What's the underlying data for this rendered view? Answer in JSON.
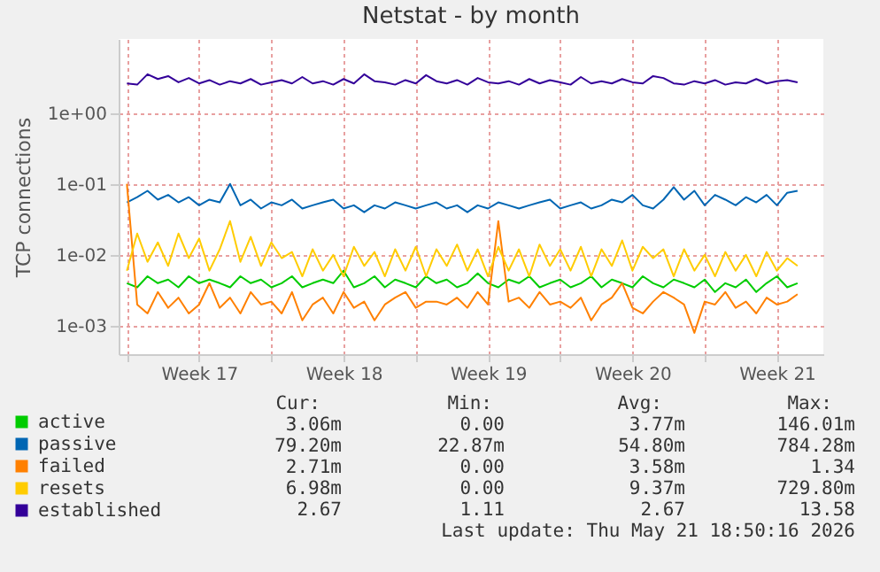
{
  "chart_data": {
    "type": "line",
    "title": "Netstat - by month",
    "ylabel": "TCP connections",
    "log": "y",
    "grid": true,
    "legend": "bottom left",
    "marker": "none",
    "line_style": "solid",
    "xlim": [
      "2026-04-19T14:24",
      "2026-05-23T18:00"
    ],
    "xticks": [
      {
        "value": "2026-04-20T00:00",
        "label": null
      },
      {
        "value": "2026-04-23T12:00",
        "label": "Week 17"
      },
      {
        "value": "2026-04-27T00:00",
        "label": null
      },
      {
        "value": "2026-04-30T12:00",
        "label": "Week 18"
      },
      {
        "value": "2026-05-04T00:00",
        "label": null
      },
      {
        "value": "2026-05-07T12:00",
        "label": "Week 19"
      },
      {
        "value": "2026-05-11T00:00",
        "label": null
      },
      {
        "value": "2026-05-14T12:00",
        "label": "Week 20"
      },
      {
        "value": "2026-05-18T00:00",
        "label": null
      },
      {
        "value": "2026-05-21T12:00",
        "label": "Week 21"
      }
    ],
    "ylim": [
      0.0004,
      11
    ],
    "yticks": [
      {
        "value": 0.001,
        "label": "1e-03"
      },
      {
        "value": 0.01,
        "label": "1e-02"
      },
      {
        "value": 0.1,
        "label": "1e-01"
      },
      {
        "value": 1,
        "label": "1e+00"
      }
    ],
    "x": [
      "2026-04-20T00:00",
      "2026-04-20T12:00",
      "2026-04-21T00:00",
      "2026-04-21T12:00",
      "2026-04-22T00:00",
      "2026-04-22T12:00",
      "2026-04-23T00:00",
      "2026-04-23T12:00",
      "2026-04-24T00:00",
      "2026-04-24T12:00",
      "2026-04-25T00:00",
      "2026-04-25T12:00",
      "2026-04-26T00:00",
      "2026-04-26T12:00",
      "2026-04-27T00:00",
      "2026-04-27T12:00",
      "2026-04-28T00:00",
      "2026-04-28T12:00",
      "2026-04-29T00:00",
      "2026-04-29T12:00",
      "2026-04-30T00:00",
      "2026-04-30T12:00",
      "2026-05-01T00:00",
      "2026-05-01T12:00",
      "2026-05-02T00:00",
      "2026-05-02T12:00",
      "2026-05-03T00:00",
      "2026-05-03T12:00",
      "2026-05-04T00:00",
      "2026-05-04T12:00",
      "2026-05-05T00:00",
      "2026-05-05T12:00",
      "2026-05-06T00:00",
      "2026-05-06T12:00",
      "2026-05-07T00:00",
      "2026-05-07T12:00",
      "2026-05-08T00:00",
      "2026-05-08T12:00",
      "2026-05-09T00:00",
      "2026-05-09T12:00",
      "2026-05-10T00:00",
      "2026-05-10T12:00",
      "2026-05-11T00:00",
      "2026-05-11T12:00",
      "2026-05-12T00:00",
      "2026-05-12T12:00",
      "2026-05-13T00:00",
      "2026-05-13T12:00",
      "2026-05-14T00:00",
      "2026-05-14T12:00",
      "2026-05-15T00:00",
      "2026-05-15T12:00",
      "2026-05-16T00:00",
      "2026-05-16T12:00",
      "2026-05-17T00:00",
      "2026-05-17T12:00",
      "2026-05-18T00:00",
      "2026-05-18T12:00",
      "2026-05-19T00:00",
      "2026-05-19T12:00",
      "2026-05-20T00:00",
      "2026-05-20T12:00",
      "2026-05-21T00:00",
      "2026-05-21T12:00",
      "2026-05-22T00:00",
      "2026-05-22T12:00"
    ],
    "series": [
      {
        "name": "active",
        "color": "#00cc00",
        "values": [
          0.004,
          0.0035,
          0.005,
          0.004,
          0.0045,
          0.0035,
          0.005,
          0.004,
          0.0045,
          0.004,
          0.0035,
          0.005,
          0.004,
          0.0045,
          0.0035,
          0.004,
          0.005,
          0.0035,
          0.004,
          0.0045,
          0.004,
          0.006,
          0.0035,
          0.004,
          0.005,
          0.0035,
          0.0045,
          0.004,
          0.0035,
          0.005,
          0.004,
          0.0045,
          0.0035,
          0.004,
          0.0055,
          0.004,
          0.0035,
          0.0045,
          0.004,
          0.005,
          0.0035,
          0.004,
          0.0045,
          0.0035,
          0.004,
          0.005,
          0.0035,
          0.0045,
          0.004,
          0.0035,
          0.005,
          0.004,
          0.0035,
          0.0045,
          0.004,
          0.0035,
          0.0045,
          0.003,
          0.004,
          0.0035,
          0.0045,
          0.003,
          0.004,
          0.005,
          0.0035,
          0.004
        ]
      },
      {
        "name": "passive",
        "color": "#0066b3",
        "values": [
          0.055,
          0.065,
          0.08,
          0.06,
          0.07,
          0.055,
          0.065,
          0.05,
          0.06,
          0.055,
          0.1,
          0.05,
          0.06,
          0.045,
          0.055,
          0.05,
          0.06,
          0.045,
          0.05,
          0.055,
          0.06,
          0.045,
          0.05,
          0.04,
          0.05,
          0.045,
          0.055,
          0.05,
          0.045,
          0.05,
          0.055,
          0.045,
          0.05,
          0.04,
          0.05,
          0.045,
          0.055,
          0.05,
          0.045,
          0.05,
          0.055,
          0.06,
          0.045,
          0.05,
          0.055,
          0.045,
          0.05,
          0.06,
          0.055,
          0.07,
          0.05,
          0.045,
          0.06,
          0.09,
          0.06,
          0.08,
          0.05,
          0.07,
          0.06,
          0.05,
          0.065,
          0.055,
          0.07,
          0.05,
          0.075,
          0.08
        ]
      },
      {
        "name": "failed",
        "color": "#ff8000",
        "values": [
          0.1,
          0.002,
          0.0015,
          0.003,
          0.0018,
          0.0025,
          0.0015,
          0.002,
          0.004,
          0.0018,
          0.0025,
          0.0015,
          0.003,
          0.002,
          0.0022,
          0.0015,
          0.003,
          0.0012,
          0.002,
          0.0025,
          0.0015,
          0.003,
          0.0018,
          0.0022,
          0.0012,
          0.002,
          0.0025,
          0.003,
          0.0018,
          0.0022,
          0.0022,
          0.002,
          0.0025,
          0.0018,
          0.003,
          0.002,
          0.03,
          0.0022,
          0.0025,
          0.0018,
          0.003,
          0.002,
          0.0022,
          0.0018,
          0.0025,
          0.0012,
          0.002,
          0.0025,
          0.004,
          0.0018,
          0.0015,
          0.0022,
          0.003,
          0.0025,
          0.002,
          0.0008,
          0.0022,
          0.002,
          0.003,
          0.0018,
          0.0022,
          0.0015,
          0.0025,
          0.002,
          0.0022,
          0.0028
        ]
      },
      {
        "name": "resets",
        "color": "#ffcc00",
        "values": [
          0.006,
          0.02,
          0.008,
          0.015,
          0.007,
          0.02,
          0.009,
          0.017,
          0.006,
          0.012,
          0.03,
          0.008,
          0.018,
          0.007,
          0.015,
          0.009,
          0.011,
          0.005,
          0.012,
          0.006,
          0.01,
          0.005,
          0.013,
          0.007,
          0.011,
          0.005,
          0.012,
          0.006,
          0.013,
          0.005,
          0.012,
          0.007,
          0.014,
          0.006,
          0.012,
          0.005,
          0.013,
          0.006,
          0.012,
          0.005,
          0.014,
          0.007,
          0.012,
          0.006,
          0.013,
          0.005,
          0.012,
          0.007,
          0.016,
          0.006,
          0.013,
          0.009,
          0.012,
          0.005,
          0.012,
          0.006,
          0.01,
          0.005,
          0.011,
          0.006,
          0.01,
          0.005,
          0.011,
          0.006,
          0.009,
          0.007
        ]
      },
      {
        "name": "established",
        "color": "#330099",
        "values": [
          2.6,
          2.5,
          3.5,
          3.0,
          3.3,
          2.7,
          3.1,
          2.6,
          2.9,
          2.5,
          2.8,
          2.6,
          3.0,
          2.5,
          2.7,
          2.9,
          2.6,
          3.2,
          2.6,
          2.8,
          2.5,
          3.0,
          2.6,
          3.5,
          2.8,
          2.7,
          2.5,
          2.9,
          2.6,
          3.4,
          2.8,
          2.6,
          2.9,
          2.5,
          3.1,
          2.7,
          2.6,
          2.8,
          2.5,
          3.0,
          2.6,
          2.9,
          2.7,
          2.5,
          3.2,
          2.6,
          2.8,
          2.6,
          3.0,
          2.7,
          2.6,
          3.3,
          3.1,
          2.6,
          2.5,
          2.8,
          2.6,
          2.9,
          2.5,
          2.7,
          2.6,
          3.0,
          2.6,
          2.8,
          2.9,
          2.7
        ]
      }
    ],
    "annotations": [
      "Cur:",
      "Min:",
      "Avg:",
      "Max:",
      "3.06m",
      "0.00",
      "3.77m",
      "146.01m",
      "79.20m",
      "22.87m",
      "54.80m",
      "784.28m",
      "2.71m",
      "0.00",
      "3.58m",
      "1.34",
      "6.98m",
      "0.00",
      "9.37m",
      "729.80m",
      "2.67",
      "1.11",
      "2.67",
      "13.58",
      "Last update: Thu May 21 18:50:16 2026"
    ]
  }
}
